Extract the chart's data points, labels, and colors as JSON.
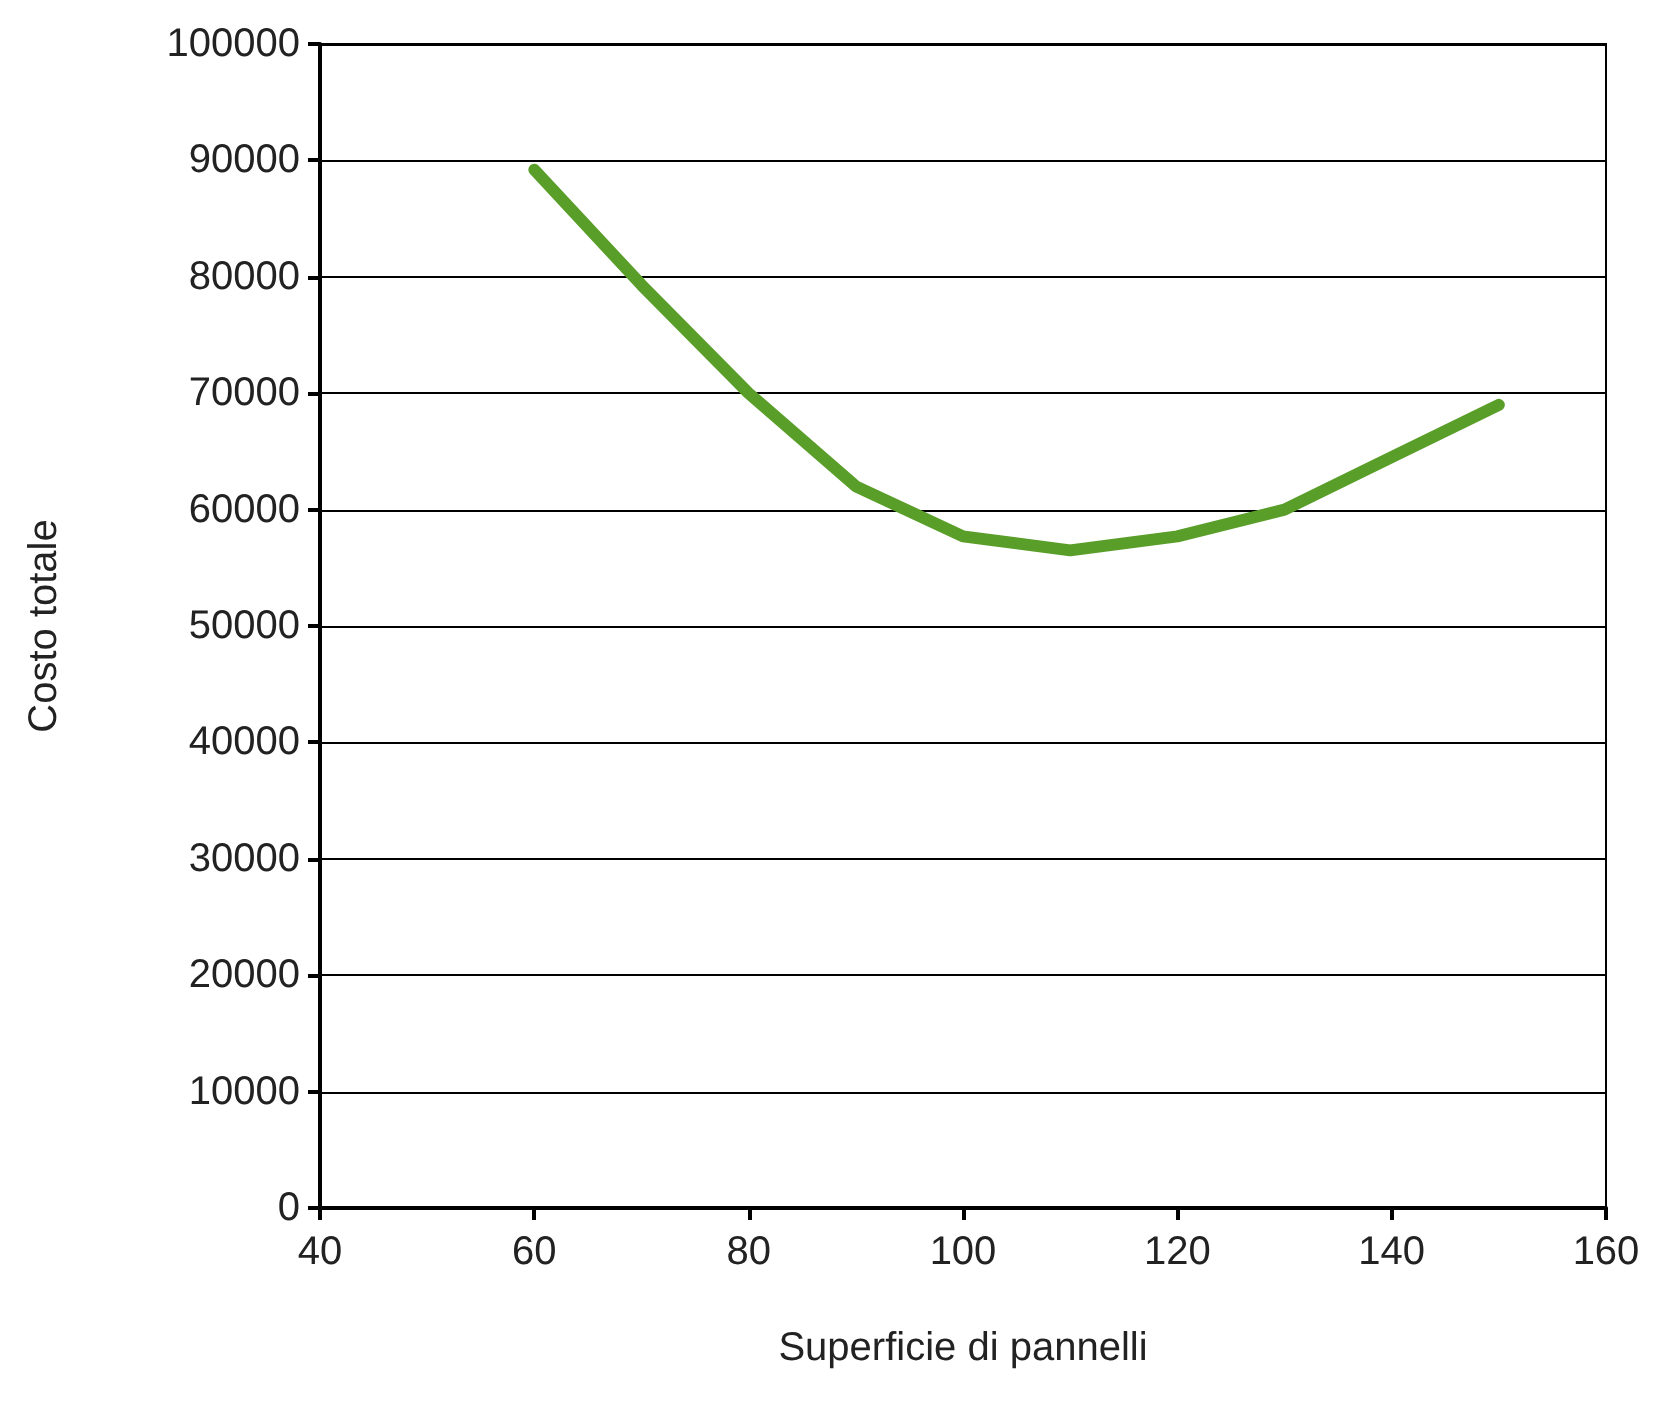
{
  "chart_data": {
    "type": "line",
    "xlabel": "Superficie di pannelli",
    "ylabel": "Costo totale",
    "x": [
      60,
      70,
      80,
      90,
      100,
      110,
      120,
      130,
      140,
      150
    ],
    "series": [
      {
        "color": "#5a9e2a",
        "values": [
          89200,
          79300,
          70000,
          62000,
          57700,
          56500,
          57700,
          60000,
          64500,
          69000
        ]
      }
    ],
    "xlim": [
      40,
      160
    ],
    "xticks": [
      40,
      60,
      80,
      100,
      120,
      140,
      160
    ],
    "ylim": [
      0,
      100000
    ],
    "yticks": [
      0,
      10000,
      20000,
      30000,
      40000,
      50000,
      60000,
      70000,
      80000,
      90000,
      100000
    ],
    "grid": "y",
    "marker": "none",
    "line_style": "solid"
  }
}
